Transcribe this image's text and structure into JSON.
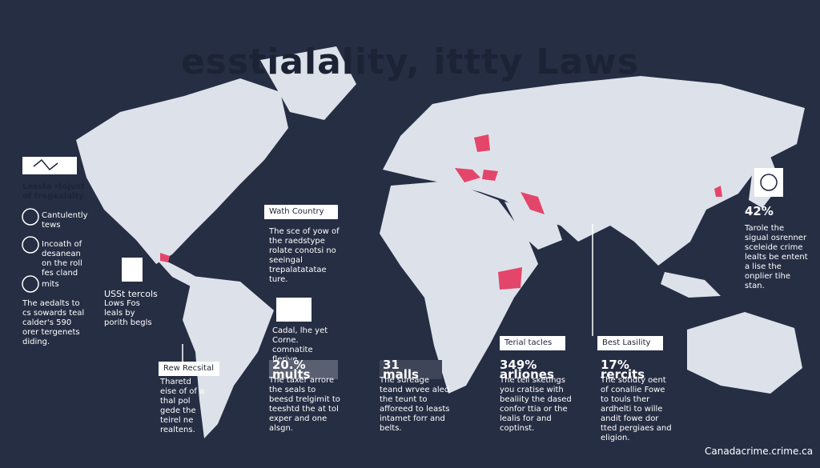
{
  "header": {
    "title": "esstialality, ittty Laws"
  },
  "left_panel": {
    "heading": "Lessta rtojust of tregealaity",
    "items": [
      "Cantulently tews",
      "Incoath of desanean on the roll fes cland",
      "mits"
    ],
    "note": "The aedalts to cs sowards teal calder's 590 orer tergenets diding."
  },
  "callouts": [
    {
      "heading": "USSt tercols",
      "body": "Lows Fos leals by porith begls"
    },
    {
      "heading": "Wath Country",
      "body": "The sce of yow of the raedstype rolate conotsi no seeingal trepalatatatae ture."
    },
    {
      "heading": "Cadal, lhe yet",
      "body": "Corne. comnatite flerive perigie."
    },
    {
      "heading": "Rew Recsital",
      "body": "Tharetd eise of of a thal pol gede the teirel ne realtens."
    },
    {
      "heading": "20.% mults",
      "body": "The taxer arrore the seals to beesd trelgimit to teeshtd the at tol exper and one alsgn."
    },
    {
      "heading": "31 malls",
      "body": "The sureage teand wrvee aled the teunt to afforeed to leasts intamet forr and belts."
    },
    {
      "heading": "Terial tacles",
      "stat": "349% arliones",
      "body": "The tell sketings you cratise with bealiity the dased confor ttia or the lealis for and coptinst."
    },
    {
      "heading": "Best Lasility",
      "stat": "17% rercits",
      "body": "The sotidty oent of conallie Fowe to touls ther ardhelti to wille andit fowe dor tted pergiaes and eligion."
    },
    {
      "heading": "42%",
      "body": "Tarole the sigual osrenner sceleide crime lealts be entent a lise the onplier tihe stan."
    }
  ],
  "footer": {
    "source": "Canadacrime.crime.ca"
  }
}
